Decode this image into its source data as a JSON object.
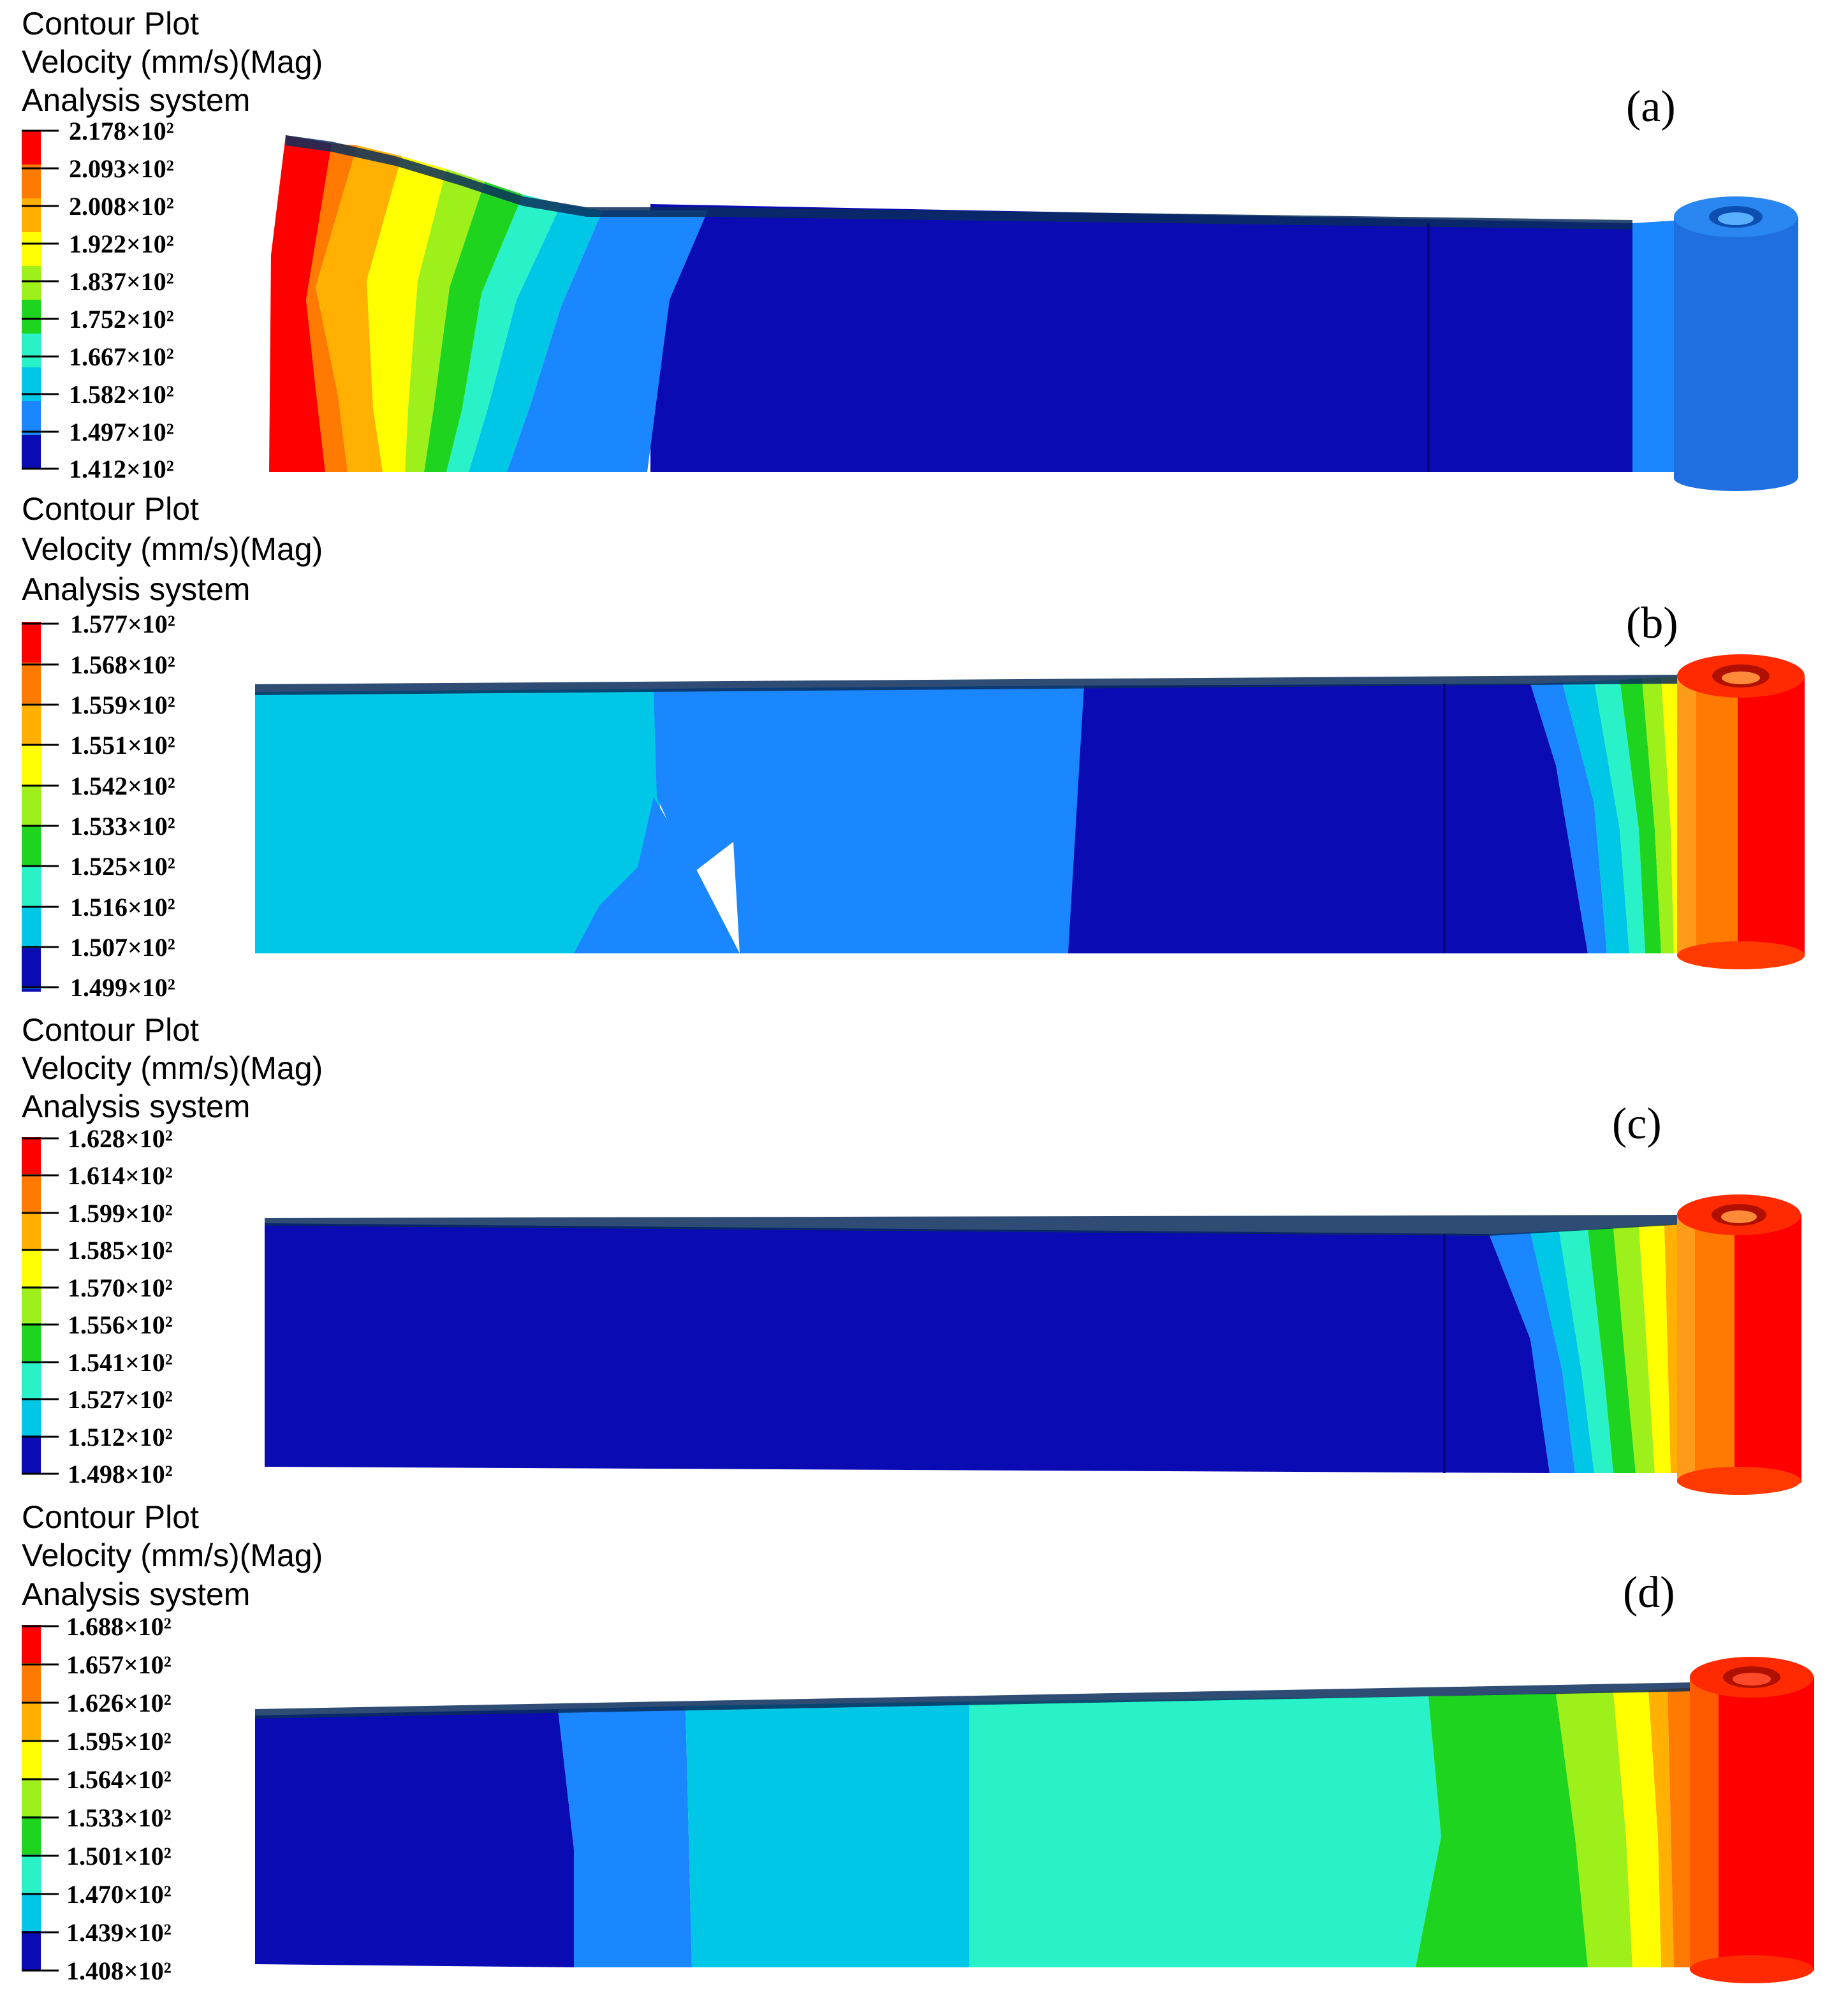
{
  "colors": {
    "scale": [
      "#0b0bb4",
      "#1a86ff",
      "#00c7e6",
      "#29f2c8",
      "#1fd41f",
      "#9df01a",
      "#ffff00",
      "#ffb000",
      "#ff7a00",
      "#ff0000"
    ],
    "dark_edge": "#0a2e5c",
    "roller": "#1f6fe0"
  },
  "panels": [
    {
      "label": "(a)",
      "header": [
        "Contour Plot",
        "Velocity (mm/s)(Mag)",
        "Analysis system"
      ],
      "ticks": [
        "2.178×10²",
        "2.093×10²",
        "2.008×10²",
        "1.922×10²",
        "1.837×10²",
        "1.752×10²",
        "1.667×10²",
        "1.582×10²",
        "1.497×10²",
        "1.412×10²"
      ]
    },
    {
      "label": "(b)",
      "header": [
        "Contour Plot",
        "Velocity (mm/s)(Mag)",
        "Analysis system"
      ],
      "ticks": [
        "1.577×10²",
        "1.568×10²",
        "1.559×10²",
        "1.551×10²",
        "1.542×10²",
        "1.533×10²",
        "1.525×10²",
        "1.516×10²",
        "1.507×10²",
        "1.499×10²"
      ]
    },
    {
      "label": "(c)",
      "header": [
        "Contour Plot",
        "Velocity (mm/s)(Mag)",
        "Analysis system"
      ],
      "ticks": [
        "1.628×10²",
        "1.614×10²",
        "1.599×10²",
        "1.585×10²",
        "1.570×10²",
        "1.556×10²",
        "1.541×10²",
        "1.527×10²",
        "1.512×10²",
        "1.498×10²"
      ]
    },
    {
      "label": "(d)",
      "header": [
        "Contour Plot",
        "Velocity (mm/s)(Mag)",
        "Analysis system"
      ],
      "ticks": [
        "1.688×10²",
        "1.657×10²",
        "1.626×10²",
        "1.595×10²",
        "1.564×10²",
        "1.533×10²",
        "1.501×10²",
        "1.470×10²",
        "1.439×10²",
        "1.408×10²"
      ]
    }
  ]
}
